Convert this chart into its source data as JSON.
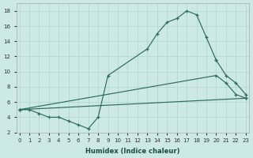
{
  "bg_color": "#cce9e6",
  "grid_color": "#aed4d1",
  "line_color": "#2a6b62",
  "xlabel": "Humidex (Indice chaleur)",
  "xlim": [
    -0.3,
    23.3
  ],
  "ylim": [
    2,
    19
  ],
  "series": [
    {
      "x": [
        0,
        1,
        2,
        3,
        4,
        5,
        6,
        7,
        8,
        9,
        13,
        14,
        15,
        16,
        17,
        18,
        19,
        20
      ],
      "y": [
        5,
        5,
        4.5,
        4.0,
        4.0,
        3.5,
        3.0,
        2.5,
        4.0,
        9.5,
        13.0,
        15.0,
        16.5,
        17.0,
        18.0,
        17.5,
        14.5,
        11.5
      ]
    },
    {
      "x": [
        20,
        21,
        22,
        23
      ],
      "y": [
        11.5,
        9.5,
        8.5,
        7.0
      ]
    },
    {
      "x": [
        0,
        20,
        21,
        22,
        23
      ],
      "y": [
        5,
        9.5,
        8.5,
        7.0,
        6.5
      ]
    },
    {
      "x": [
        0,
        23
      ],
      "y": [
        5,
        6.5
      ]
    }
  ]
}
